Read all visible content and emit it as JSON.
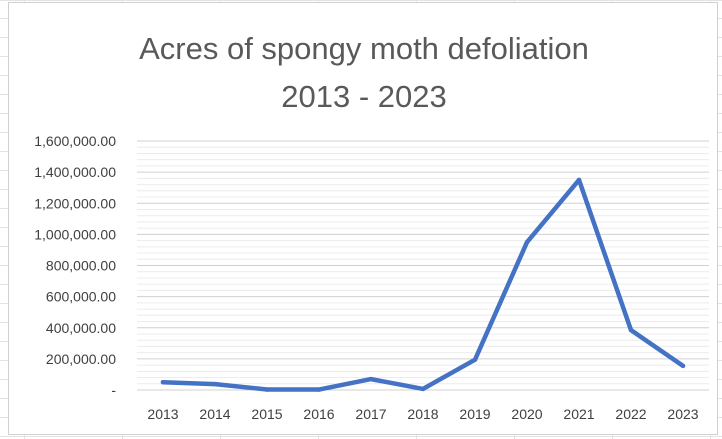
{
  "chart_data": {
    "type": "line",
    "title_lines": [
      "Acres of spongy moth defoliation",
      "2013 - 2023"
    ],
    "xlabel": "",
    "ylabel": "",
    "categories": [
      "2013",
      "2014",
      "2015",
      "2016",
      "2017",
      "2018",
      "2019",
      "2020",
      "2021",
      "2022",
      "2023"
    ],
    "series": [
      {
        "values": [
          50000,
          38000,
          3000,
          3000,
          70000,
          7000,
          195000,
          950000,
          1350000,
          385000,
          155000
        ]
      }
    ],
    "ylim": [
      0,
      1600000
    ],
    "y_ticks": [
      0,
      200000,
      400000,
      600000,
      800000,
      1000000,
      1200000,
      1400000,
      1600000
    ],
    "y_tick_labels": [
      "-",
      "200,000.00",
      "400,000.00",
      "600,000.00",
      "800,000.00",
      "1,000,000.00",
      "1,200,000.00",
      "1,400,000.00",
      "1,600,000.00"
    ],
    "grid": true,
    "legend": "none",
    "line_color": "#4472c4",
    "grid_color": "#d9d9d9"
  }
}
